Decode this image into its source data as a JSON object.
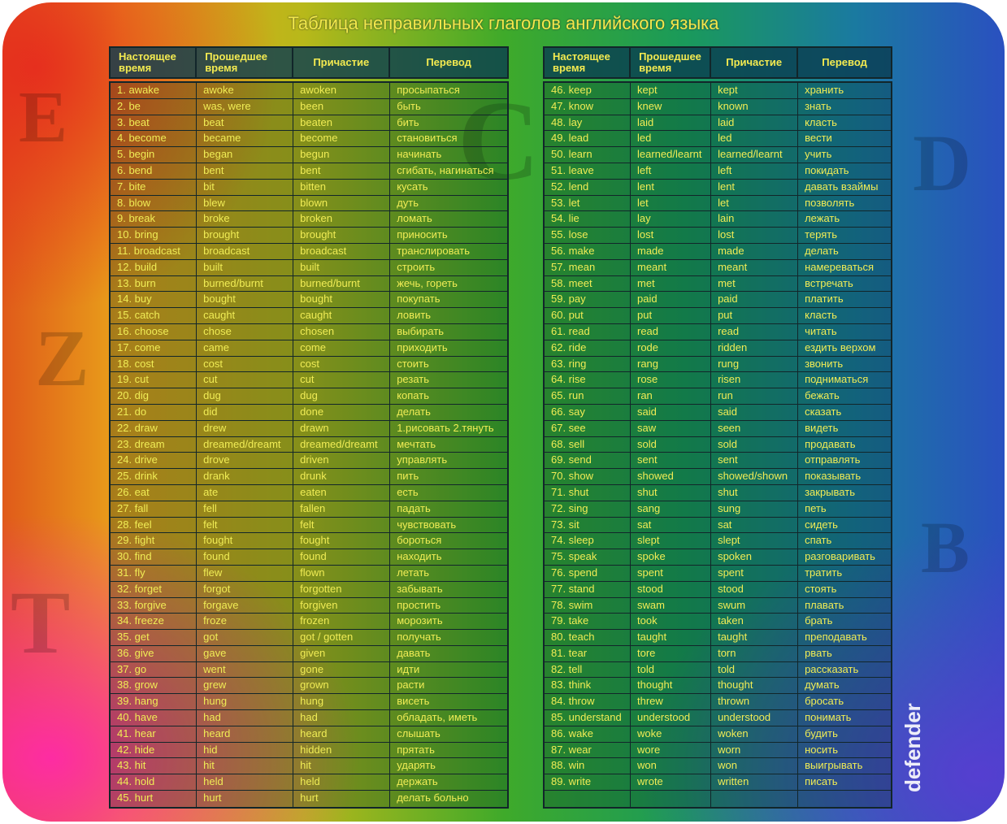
{
  "title": "Таблица неправильных глаголов английского языка",
  "headers": [
    "Настоящее время",
    "Прошедшее время",
    "Причастие",
    "Перевод"
  ],
  "logo": "defender",
  "left_rows": [
    [
      "1. awake",
      "awoke",
      "awoken",
      "просыпаться"
    ],
    [
      "2. be",
      "was, were",
      "been",
      "быть"
    ],
    [
      "3. beat",
      "beat",
      "beaten",
      "бить"
    ],
    [
      "4. become",
      "became",
      "become",
      "становиться"
    ],
    [
      "5. begin",
      "began",
      "begun",
      "начинать"
    ],
    [
      "6. bend",
      "bent",
      "bent",
      "сгибать, нагинаться"
    ],
    [
      "7. bite",
      "bit",
      "bitten",
      "кусать"
    ],
    [
      "8. blow",
      "blew",
      "blown",
      "дуть"
    ],
    [
      "9. break",
      "broke",
      "broken",
      "ломать"
    ],
    [
      "10. bring",
      "brought",
      "brought",
      "приносить"
    ],
    [
      "11. broadcast",
      "broadcast",
      "broadcast",
      "транслировать"
    ],
    [
      "12. build",
      "built",
      "built",
      "строить"
    ],
    [
      "13. burn",
      "burned/burnt",
      "burned/burnt",
      "жечь, гореть"
    ],
    [
      "14. buy",
      "bought",
      "bought",
      "покупать"
    ],
    [
      "15. catch",
      "caught",
      "caught",
      "ловить"
    ],
    [
      "16. choose",
      "chose",
      "chosen",
      "выбирать"
    ],
    [
      "17. come",
      "came",
      "come",
      "приходить"
    ],
    [
      "18. cost",
      "cost",
      "cost",
      "стоить"
    ],
    [
      "19. cut",
      "cut",
      "cut",
      "резать"
    ],
    [
      "20. dig",
      "dug",
      "dug",
      "копать"
    ],
    [
      "21. do",
      "did",
      "done",
      "делать"
    ],
    [
      "22. draw",
      "drew",
      "drawn",
      "1.рисовать 2.тянуть"
    ],
    [
      "23. dream",
      "dreamed/dreamt",
      "dreamed/dreamt",
      "мечтать"
    ],
    [
      "24. drive",
      "drove",
      "driven",
      "управлять"
    ],
    [
      "25. drink",
      "drank",
      "drunk",
      "пить"
    ],
    [
      "26. eat",
      "ate",
      "eaten",
      "есть"
    ],
    [
      "27. fall",
      "fell",
      "fallen",
      "падать"
    ],
    [
      "28. feel",
      "felt",
      "felt",
      "чувствовать"
    ],
    [
      "29. fight",
      "fought",
      "fought",
      "бороться"
    ],
    [
      "30. find",
      "found",
      "found",
      "находить"
    ],
    [
      "31. fly",
      "flew",
      "flown",
      "летать"
    ],
    [
      "32. forget",
      "forgot",
      "forgotten",
      "забывать"
    ],
    [
      "33. forgive",
      "forgave",
      "forgiven",
      "простить"
    ],
    [
      "34. freeze",
      "froze",
      "frozen",
      "морозить"
    ],
    [
      "35. get",
      "got",
      "got / gotten",
      "получать"
    ],
    [
      "36. give",
      "gave",
      "given",
      "давать"
    ],
    [
      "37. go",
      "went",
      "gone",
      "идти"
    ],
    [
      "38. grow",
      "grew",
      "grown",
      "расти"
    ],
    [
      "39. hang",
      "hung",
      "hung",
      "висеть"
    ],
    [
      "40. have",
      "had",
      "had",
      "обладать, иметь"
    ],
    [
      "41. hear",
      "heard",
      "heard",
      "слышать"
    ],
    [
      "42. hide",
      "hid",
      "hidden",
      "прятать"
    ],
    [
      "43. hit",
      "hit",
      "hit",
      "ударять"
    ],
    [
      "44. hold",
      "held",
      "held",
      "держать"
    ],
    [
      "45. hurt",
      "hurt",
      "hurt",
      "делать больно"
    ]
  ],
  "right_rows": [
    [
      "46. keep",
      "kept",
      "kept",
      "хранить"
    ],
    [
      "47. know",
      "knew",
      "known",
      "знать"
    ],
    [
      "48. lay",
      "laid",
      "laid",
      "класть"
    ],
    [
      "49. lead",
      "led",
      "led",
      "вести"
    ],
    [
      "50. learn",
      "learned/learnt",
      "learned/learnt",
      "учить"
    ],
    [
      "51. leave",
      "left",
      "left",
      "покидать"
    ],
    [
      "52. lend",
      "lent",
      "lent",
      "давать взаймы"
    ],
    [
      "53. let",
      "let",
      "let",
      "позволять"
    ],
    [
      "54. lie",
      "lay",
      "lain",
      "лежать"
    ],
    [
      "55. lose",
      "lost",
      "lost",
      "терять"
    ],
    [
      "56. make",
      "made",
      "made",
      "делать"
    ],
    [
      "57. mean",
      "meant",
      "meant",
      "намереваться"
    ],
    [
      "58. meet",
      "met",
      "met",
      "встречать"
    ],
    [
      "59. pay",
      "paid",
      "paid",
      "платить"
    ],
    [
      "60. put",
      "put",
      "put",
      "класть"
    ],
    [
      "61. read",
      "read",
      "read",
      "читать"
    ],
    [
      "62. ride",
      "rode",
      "ridden",
      "ездить верхом"
    ],
    [
      "63. ring",
      "rang",
      "rung",
      "звонить"
    ],
    [
      "64. rise",
      "rose",
      "risen",
      "подниматься"
    ],
    [
      "65. run",
      "ran",
      "run",
      "бежать"
    ],
    [
      "66. say",
      "said",
      "said",
      "сказать"
    ],
    [
      "67. see",
      "saw",
      "seen",
      "видеть"
    ],
    [
      "68. sell",
      "sold",
      "sold",
      "продавать"
    ],
    [
      "69. send",
      "sent",
      "sent",
      "отправлять"
    ],
    [
      "70. show",
      "showed",
      "showed/shown",
      "показывать"
    ],
    [
      "71. shut",
      "shut",
      "shut",
      "закрывать"
    ],
    [
      "72. sing",
      "sang",
      "sung",
      "петь"
    ],
    [
      "73. sit",
      "sat",
      "sat",
      "сидеть"
    ],
    [
      "74. sleep",
      "slept",
      "slept",
      "спать"
    ],
    [
      "75. speak",
      "spoke",
      "spoken",
      "разговаривать"
    ],
    [
      "76. spend",
      "spent",
      "spent",
      "тратить"
    ],
    [
      "77. stand",
      "stood",
      "stood",
      "стоять"
    ],
    [
      "78. swim",
      "swam",
      "swum",
      "плавать"
    ],
    [
      "79. take",
      "took",
      "taken",
      "брать"
    ],
    [
      "80. teach",
      "taught",
      "taught",
      "преподавать"
    ],
    [
      "81. tear",
      "tore",
      "torn",
      "рвать"
    ],
    [
      "82. tell",
      "told",
      "told",
      "рассказать"
    ],
    [
      "83. think",
      "thought",
      "thought",
      "думать"
    ],
    [
      "84. throw",
      "threw",
      "thrown",
      "бросать"
    ],
    [
      "85. understand",
      "understood",
      "understood",
      "понимать"
    ],
    [
      "86. wake",
      "woke",
      "woken",
      "будить"
    ],
    [
      "87. wear",
      "wore",
      "worn",
      "носить"
    ],
    [
      "88. win",
      "won",
      "won",
      "выигрывать"
    ],
    [
      "89. write",
      "wrote",
      "written",
      "писать"
    ],
    [
      "",
      "",
      "",
      ""
    ]
  ]
}
